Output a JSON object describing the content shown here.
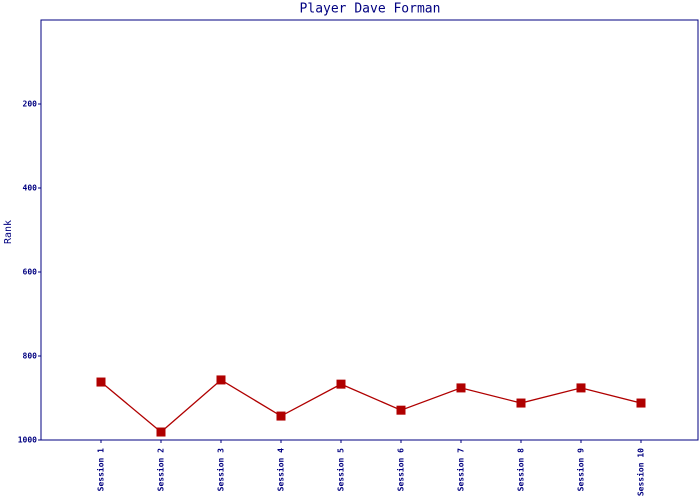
{
  "chart_data": {
    "type": "line",
    "title": "Player Dave Forman",
    "y_label": "Rank",
    "categories": [
      "Session 1",
      "Session 2",
      "Session 3",
      "Session 4",
      "Session 5",
      "Session 6",
      "Session 7",
      "Session 8",
      "Session 9",
      "Session 10"
    ],
    "series": [
      {
        "name": "Rank",
        "color": "#b00000",
        "values": [
          862,
          981,
          857,
          943,
          867,
          929,
          876,
          912,
          876,
          912
        ]
      }
    ],
    "ylim": [
      1000,
      0
    ],
    "yticks": [
      200,
      400,
      600,
      800,
      1000
    ]
  }
}
